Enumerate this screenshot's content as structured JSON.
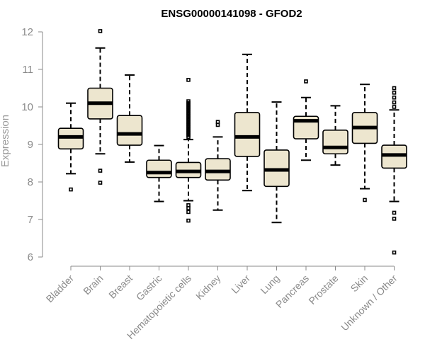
{
  "chart_data": {
    "type": "box",
    "title": "ENSG00000141098 - GFOD2",
    "xlabel": "",
    "ylabel": "Expression",
    "ylim": [
      6,
      12
    ],
    "yticks": [
      6,
      7,
      8,
      9,
      10,
      11,
      12
    ],
    "grid": false,
    "box_color": "#ede6cf",
    "categories": [
      "Bladder",
      "Brain",
      "Breast",
      "Gastric",
      "Hematopoietic cells",
      "Kidney",
      "Liver",
      "Lung",
      "Pancreas",
      "Prostate",
      "Skin",
      "Unknown / Other"
    ],
    "boxes": [
      {
        "label": "Bladder",
        "whislo": 8.22,
        "q1": 8.88,
        "med": 9.2,
        "q3": 9.43,
        "whishi": 10.1,
        "fliers": [
          7.8
        ]
      },
      {
        "label": "Brain",
        "whislo": 8.75,
        "q1": 9.68,
        "med": 10.1,
        "q3": 10.5,
        "whishi": 11.57,
        "fliers": [
          12.02,
          8.3,
          7.98
        ]
      },
      {
        "label": "Breast",
        "whislo": 8.53,
        "q1": 8.98,
        "med": 9.28,
        "q3": 9.77,
        "whishi": 10.85,
        "fliers": []
      },
      {
        "label": "Gastric",
        "whislo": 7.48,
        "q1": 8.12,
        "med": 8.25,
        "q3": 8.58,
        "whishi": 8.97,
        "fliers": []
      },
      {
        "label": "Hematopoietic cells",
        "whislo": 7.5,
        "q1": 8.12,
        "med": 8.28,
        "q3": 8.52,
        "whishi": 9.13,
        "fliers": [
          10.72,
          10.15,
          10.1,
          10.05,
          10.0,
          9.95,
          9.9,
          9.85,
          9.8,
          9.75,
          9.7,
          9.65,
          9.6,
          9.55,
          9.5,
          9.45,
          9.4,
          9.35,
          9.3,
          9.25,
          9.2,
          7.38,
          7.3,
          7.2,
          6.97
        ]
      },
      {
        "label": "Kidney",
        "whislo": 7.25,
        "q1": 8.05,
        "med": 8.28,
        "q3": 8.62,
        "whishi": 9.2,
        "fliers": [
          9.6,
          9.52
        ]
      },
      {
        "label": "Liver",
        "whislo": 7.77,
        "q1": 8.68,
        "med": 9.2,
        "q3": 9.85,
        "whishi": 11.4,
        "fliers": []
      },
      {
        "label": "Lung",
        "whislo": 6.92,
        "q1": 7.88,
        "med": 8.32,
        "q3": 8.85,
        "whishi": 10.13,
        "fliers": []
      },
      {
        "label": "Pancreas",
        "whislo": 8.58,
        "q1": 9.15,
        "med": 9.63,
        "q3": 9.75,
        "whishi": 10.25,
        "fliers": [
          10.68
        ]
      },
      {
        "label": "Prostate",
        "whislo": 8.45,
        "q1": 8.75,
        "med": 8.92,
        "q3": 9.38,
        "whishi": 10.03,
        "fliers": []
      },
      {
        "label": "Skin",
        "whislo": 7.82,
        "q1": 9.03,
        "med": 9.45,
        "q3": 9.85,
        "whishi": 10.6,
        "fliers": [
          7.52
        ]
      },
      {
        "label": "Unknown / Other",
        "whislo": 7.48,
        "q1": 8.37,
        "med": 8.72,
        "q3": 8.98,
        "whishi": 9.92,
        "fliers": [
          10.5,
          10.38,
          10.25,
          10.12,
          10.0,
          7.18,
          7.02,
          6.12
        ]
      }
    ]
  }
}
